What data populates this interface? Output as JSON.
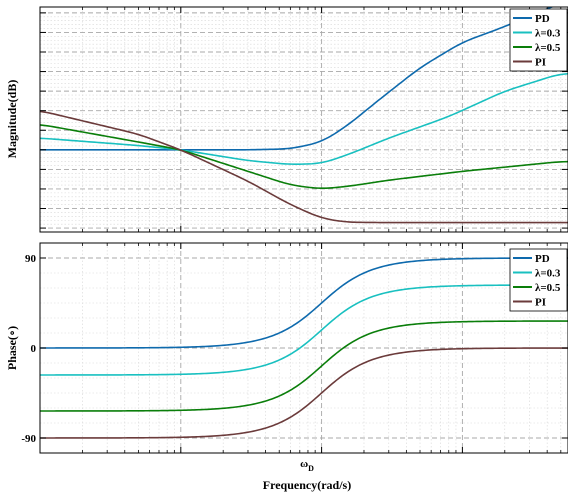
{
  "chart_data": [
    {
      "type": "line",
      "ylabel": "Magnitude(dB)",
      "x_axis": "log",
      "ylim": [
        -4.2,
        7.3
      ],
      "y_ticks": [
        -4,
        -3,
        -2,
        -1,
        0,
        1,
        2,
        3,
        4,
        5,
        6,
        7
      ],
      "y_tick_labels": [],
      "x_tick_labels": [],
      "grid": true,
      "legend_position": "top-right",
      "series": [
        {
          "name": "PD",
          "color": "#0e6aad",
          "x": [
            0.01,
            0.3,
            0.6,
            1.0,
            1.5,
            2.5,
            5,
            10,
            20,
            50
          ],
          "y": [
            0,
            0,
            0.05,
            0.4,
            1.2,
            2.5,
            4.2,
            5.5,
            6.3,
            7.5
          ]
        },
        {
          "name": "λ=0.3",
          "color": "#19c0c0",
          "x": [
            0.01,
            0.05,
            0.1,
            0.3,
            0.6,
            1.0,
            1.6,
            3,
            8,
            20,
            50
          ],
          "y": [
            0.6,
            0.22,
            0,
            -0.55,
            -0.75,
            -0.7,
            -0.2,
            0.6,
            1.7,
            3.0,
            3.9
          ]
        },
        {
          "name": "λ=0.5",
          "color": "#0a7e0a",
          "x": [
            0.01,
            0.05,
            0.1,
            0.3,
            0.6,
            1.0,
            1.6,
            3,
            10,
            50
          ],
          "y": [
            1.3,
            0.4,
            0,
            -1.1,
            -1.8,
            -2.0,
            -1.85,
            -1.55,
            -1.1,
            -0.6
          ]
        },
        {
          "name": "PI",
          "color": "#6b3b3b",
          "x": [
            0.01,
            0.05,
            0.1,
            0.3,
            0.6,
            1.0,
            1.5,
            3,
            10,
            50
          ],
          "y": [
            2.0,
            0.8,
            0,
            -1.6,
            -2.8,
            -3.5,
            -3.7,
            -3.72,
            -3.72,
            -3.72
          ]
        }
      ]
    },
    {
      "type": "line",
      "ylabel": "Phase(∘)",
      "xlabel": "Frequency(rad/s)",
      "x_axis": "log",
      "ylim": [
        -105,
        105
      ],
      "y_ticks": [
        -90,
        0,
        90
      ],
      "y_tick_labels": [
        "-90",
        "0",
        "90"
      ],
      "x_tick_labels": [
        "ωD"
      ],
      "x_tick_label_main": "ω",
      "x_tick_label_sub": "D",
      "grid": true,
      "legend_position": "top-right",
      "series": [
        {
          "name": "PD",
          "color": "#0e6aad",
          "base": 0,
          "amplitude": 90
        },
        {
          "name": "λ=0.3",
          "color": "#19c0c0",
          "base": -27,
          "amplitude": 90
        },
        {
          "name": "λ=0.5",
          "color": "#0a7e0a",
          "base": -63,
          "amplitude": 90
        },
        {
          "name": "PI",
          "color": "#6b3b3b",
          "base": -90,
          "amplitude": 90
        }
      ]
    }
  ]
}
